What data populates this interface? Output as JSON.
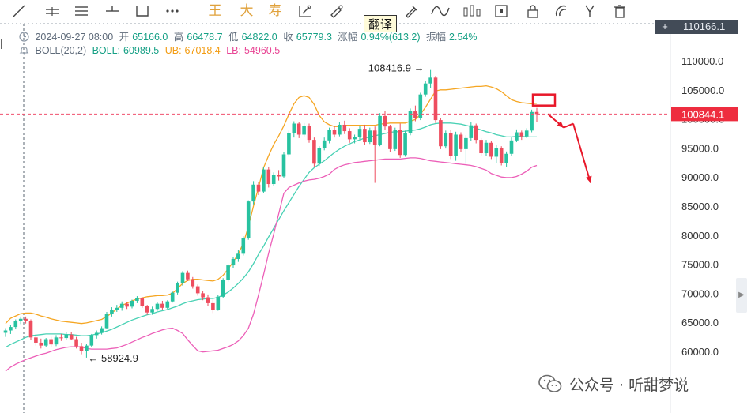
{
  "toolbar": {
    "tools": [
      {
        "name": "trend-line-icon",
        "x": 0
      },
      {
        "name": "horizontal-ray-icon",
        "x": 1
      },
      {
        "name": "parallel-channel-icon",
        "x": 2
      },
      {
        "name": "crosshair-line-icon",
        "x": 3
      },
      {
        "name": "rectangle-icon",
        "x": 4
      },
      {
        "name": "more-dots-icon",
        "x": 5
      }
    ],
    "text_tools": [
      "王",
      "大",
      "寿"
    ],
    "right_tools": [
      "fib-icon",
      "ruler-icon",
      "measure-icon",
      "brush-icon",
      "wave-icon",
      "bars-icon",
      "note-icon",
      "lock-icon",
      "magnet-icon",
      "fork-icon",
      "trash-icon"
    ]
  },
  "translate_tip": "翻译",
  "top_price_tag": {
    "symbol": "+",
    "value": "110166.1"
  },
  "info": {
    "date": "2024-09-27 08:00",
    "open_label": "开",
    "open": "65166.0",
    "high_label": "高",
    "high": "66478.7",
    "low_label": "低",
    "low": "64822.0",
    "close_label": "收",
    "close": "65779.3",
    "change_label": "涨幅",
    "change": "0.94%(613.2)",
    "amp_label": "振幅",
    "amp": "2.54%",
    "boll_label": "BOLL(20,2)",
    "boll_mid_label": "BOLL:",
    "boll_mid": "60989.5",
    "boll_ub_label": "UB:",
    "boll_ub": "67018.4",
    "boll_lb_label": "LB:",
    "boll_lb": "54960.5"
  },
  "watermark": "公众号 · 听甜梦说",
  "colors": {
    "up": "#27c2a0",
    "down": "#ee4d5f",
    "mid": "#48d1b4",
    "ub": "#f5a623",
    "lb": "#ec5fb8",
    "price_line": "#f0506e",
    "arrow": "#e8182a"
  },
  "chart_data": {
    "type": "candlestick",
    "title": "",
    "ylim": [
      55000,
      112000
    ],
    "y_ticks": [
      60000.0,
      65000.0,
      70000.0,
      75000.0,
      80000.0,
      85000.0,
      90000.0,
      95000.0,
      100000.0,
      105000.0,
      110000.0
    ],
    "current_price": "100844.1",
    "annotations": {
      "high_mark": "108416.9",
      "low_mark": "58924.9",
      "high_value": 108416.9,
      "low_value": 58924.9
    },
    "candles": [
      [
        63200,
        64000,
        62500,
        63600
      ],
      [
        63600,
        64600,
        63000,
        64200
      ],
      [
        64200,
        65500,
        63800,
        65200
      ],
      [
        65200,
        66000,
        64700,
        65600
      ],
      [
        65600,
        66000,
        64800,
        65200
      ],
      [
        65200,
        65500,
        62000,
        62400
      ],
      [
        62400,
        63000,
        61000,
        61500
      ],
      [
        61500,
        62200,
        60500,
        61000
      ],
      [
        61000,
        62300,
        60700,
        62100
      ],
      [
        62100,
        62500,
        60800,
        61200
      ],
      [
        61200,
        62800,
        60900,
        62400
      ],
      [
        62400,
        63000,
        61800,
        62300
      ],
      [
        62300,
        63400,
        62000,
        62900
      ],
      [
        62900,
        63400,
        61900,
        62100
      ],
      [
        62100,
        62500,
        60500,
        60900
      ],
      [
        60900,
        61500,
        59500,
        60100
      ],
      [
        60100,
        61300,
        58924.9,
        61000
      ],
      [
        61000,
        63000,
        60800,
        62800
      ],
      [
        62800,
        63600,
        62200,
        63200
      ],
      [
        63200,
        64300,
        62900,
        64000
      ],
      [
        64000,
        66800,
        63800,
        66500
      ],
      [
        66500,
        67600,
        66000,
        67200
      ],
      [
        67200,
        68000,
        66800,
        67500
      ],
      [
        67500,
        68600,
        67000,
        68200
      ],
      [
        68200,
        68500,
        67300,
        67700
      ],
      [
        67700,
        68900,
        67400,
        68700
      ],
      [
        68700,
        69500,
        68300,
        69100
      ],
      [
        69100,
        69300,
        67500,
        67800
      ],
      [
        67800,
        68000,
        66300,
        66700
      ],
      [
        66700,
        67700,
        66300,
        67300
      ],
      [
        67300,
        68400,
        67000,
        68200
      ],
      [
        68200,
        68700,
        67100,
        67500
      ],
      [
        67500,
        68800,
        67300,
        68600
      ],
      [
        68600,
        70300,
        68400,
        70100
      ],
      [
        70100,
        72000,
        69800,
        71800
      ],
      [
        71800,
        73800,
        71300,
        73500
      ],
      [
        73500,
        73900,
        72100,
        72400
      ],
      [
        72400,
        72800,
        70800,
        71200
      ],
      [
        71200,
        71500,
        69600,
        70000
      ],
      [
        70000,
        70400,
        68800,
        69300
      ],
      [
        69300,
        69800,
        67800,
        68300
      ],
      [
        68300,
        68900,
        66600,
        67200
      ],
      [
        67200,
        69700,
        67000,
        69400
      ],
      [
        69400,
        72600,
        69200,
        72300
      ],
      [
        72300,
        75000,
        72000,
        74800
      ],
      [
        74800,
        76300,
        74300,
        75900
      ],
      [
        75900,
        77400,
        75400,
        76800
      ],
      [
        76800,
        79800,
        76500,
        79500
      ],
      [
        79500,
        86000,
        79200,
        85800
      ],
      [
        85800,
        89300,
        85300,
        88700
      ],
      [
        88700,
        89200,
        86900,
        87500
      ],
      [
        87500,
        91800,
        87200,
        91300
      ],
      [
        91300,
        91800,
        88200,
        88800
      ],
      [
        88800,
        90800,
        88500,
        90400
      ],
      [
        90400,
        91200,
        89400,
        90100
      ],
      [
        90100,
        94300,
        89800,
        93900
      ],
      [
        93900,
        98000,
        93500,
        97500
      ],
      [
        97500,
        99600,
        96800,
        99200
      ],
      [
        99200,
        99500,
        96700,
        97300
      ],
      [
        97300,
        99300,
        97000,
        98800
      ],
      [
        98800,
        99200,
        95900,
        96400
      ],
      [
        96400,
        96800,
        91800,
        92300
      ],
      [
        92300,
        95300,
        91900,
        95000
      ],
      [
        95000,
        96800,
        94600,
        96300
      ],
      [
        96300,
        98500,
        95800,
        98100
      ],
      [
        98100,
        98800,
        96800,
        97300
      ],
      [
        97300,
        99400,
        97000,
        99000
      ],
      [
        99000,
        99700,
        97400,
        97900
      ],
      [
        97900,
        98400,
        95900,
        96500
      ],
      [
        96500,
        97300,
        95800,
        96900
      ],
      [
        96900,
        98800,
        96500,
        98300
      ],
      [
        98300,
        99000,
        95600,
        96000
      ],
      [
        96000,
        98500,
        95700,
        98000
      ],
      [
        98000,
        98700,
        89000,
        95600
      ],
      [
        95600,
        101000,
        95300,
        100500
      ],
      [
        100500,
        101300,
        98100,
        98700
      ],
      [
        98700,
        99000,
        94300,
        94800
      ],
      [
        94800,
        98500,
        94500,
        98100
      ],
      [
        98100,
        99200,
        93300,
        93800
      ],
      [
        93800,
        98000,
        93500,
        97500
      ],
      [
        97500,
        101800,
        97200,
        101300
      ],
      [
        101300,
        102300,
        99600,
        100100
      ],
      [
        100100,
        104500,
        99800,
        104200
      ],
      [
        104200,
        106600,
        103800,
        106100
      ],
      [
        106100,
        108416.9,
        105300,
        107100
      ],
      [
        107100,
        107400,
        99300,
        99800
      ],
      [
        99800,
        100200,
        94800,
        95300
      ],
      [
        95300,
        98000,
        94900,
        97600
      ],
      [
        97600,
        98100,
        93100,
        93600
      ],
      [
        93600,
        97800,
        92800,
        97300
      ],
      [
        97300,
        97700,
        94300,
        94800
      ],
      [
        94800,
        97200,
        92300,
        96700
      ],
      [
        96700,
        99400,
        96200,
        98900
      ],
      [
        98900,
        99200,
        95800,
        96400
      ],
      [
        96400,
        96700,
        93600,
        94100
      ],
      [
        94100,
        96400,
        93700,
        95900
      ],
      [
        95900,
        96200,
        93100,
        93500
      ],
      [
        93500,
        95500,
        92400,
        95000
      ],
      [
        95000,
        95300,
        92000,
        92400
      ],
      [
        92400,
        94400,
        91800,
        94000
      ],
      [
        94000,
        96800,
        93700,
        96300
      ],
      [
        96300,
        98200,
        96000,
        97700
      ],
      [
        97700,
        98000,
        96400,
        97000
      ],
      [
        97000,
        98400,
        96700,
        98000
      ],
      [
        98000,
        101600,
        97700,
        101200
      ],
      [
        101200,
        101900,
        99400,
        100844.1
      ]
    ],
    "boll": {
      "ub": [
        64800,
        65700,
        66100,
        66500,
        66600,
        66600,
        66400,
        66100,
        65900,
        65600,
        65400,
        65200,
        65100,
        65000,
        64900,
        64800,
        64900,
        65100,
        65300,
        65500,
        66000,
        66600,
        67300,
        67900,
        68300,
        68700,
        69000,
        69200,
        69400,
        69500,
        69600,
        69600,
        69700,
        70000,
        70800,
        71700,
        72200,
        72400,
        72400,
        72300,
        72200,
        72100,
        72400,
        73100,
        74200,
        75400,
        76800,
        78600,
        81500,
        85000,
        88200,
        91600,
        93700,
        95600,
        97100,
        98800,
        100800,
        102600,
        103700,
        104000,
        103700,
        102500,
        100600,
        99500,
        99000,
        98700,
        98700,
        98900,
        98900,
        98900,
        98900,
        98900,
        98900,
        98900,
        99100,
        99200,
        99300,
        99300,
        99300,
        99300,
        99600,
        99900,
        100800,
        102000,
        103400,
        104800,
        105000,
        105000,
        105100,
        105200,
        105300,
        105400,
        105500,
        105600,
        105600,
        105700,
        105500,
        105200,
        104700,
        104000,
        103300,
        103000,
        102800,
        102700,
        102600,
        102700
      ],
      "mid": [
        60700,
        61200,
        61600,
        62000,
        62400,
        62700,
        62800,
        62900,
        63000,
        63000,
        63000,
        63000,
        62900,
        62900,
        62800,
        62700,
        62700,
        62800,
        63000,
        63200,
        63500,
        63800,
        64200,
        64600,
        65000,
        65400,
        65700,
        66000,
        66300,
        66500,
        66800,
        67000,
        67200,
        67500,
        67800,
        68200,
        68500,
        68700,
        68900,
        69000,
        69100,
        69100,
        69300,
        69700,
        70200,
        70900,
        71700,
        72600,
        73700,
        75100,
        76700,
        78100,
        79700,
        81200,
        82700,
        84200,
        85600,
        87000,
        88400,
        89600,
        90800,
        91600,
        92200,
        92800,
        93500,
        94200,
        94800,
        95300,
        95700,
        96100,
        96400,
        96700,
        96900,
        97100,
        97300,
        97500,
        97700,
        97800,
        97800,
        97900,
        98000,
        98100,
        98300,
        98600,
        99000,
        99200,
        99300,
        99300,
        99300,
        99200,
        99100,
        98900,
        98700,
        98400,
        98100,
        97800,
        97600,
        97300,
        97100,
        96900,
        96900,
        97000,
        97000,
        96900,
        96900,
        96900
      ],
      "lb": [
        56600,
        57300,
        57800,
        58200,
        58600,
        58900,
        59200,
        59500,
        59700,
        60000,
        60300,
        60500,
        60700,
        60800,
        60800,
        60800,
        60500,
        60400,
        60400,
        60400,
        60400,
        60500,
        60600,
        60900,
        61200,
        61600,
        62000,
        62400,
        62700,
        63100,
        63400,
        63700,
        63900,
        64000,
        63600,
        63100,
        62000,
        61000,
        60100,
        59900,
        60000,
        60100,
        60200,
        60500,
        60800,
        61200,
        61800,
        62700,
        64000,
        66400,
        69700,
        73200,
        76900,
        80200,
        83700,
        87200,
        88200,
        88600,
        89000,
        89300,
        89500,
        89600,
        89800,
        90100,
        90500,
        91300,
        91800,
        92100,
        92300,
        92500,
        92600,
        92700,
        92800,
        92900,
        93000,
        93100,
        93100,
        93100,
        93100,
        93200,
        93300,
        93300,
        93200,
        93000,
        92800,
        92700,
        92600,
        92500,
        92400,
        92300,
        92200,
        92100,
        92000,
        91800,
        91500,
        91200,
        90600,
        90300,
        90000,
        89900,
        89900,
        90100,
        90500,
        91000,
        91700,
        92000
      ]
    },
    "projection": [
      [
        100844.1,
        98500
      ],
      [
        98500,
        99200
      ],
      [
        99200,
        89000
      ]
    ],
    "grid": true,
    "legend": "top-left"
  }
}
